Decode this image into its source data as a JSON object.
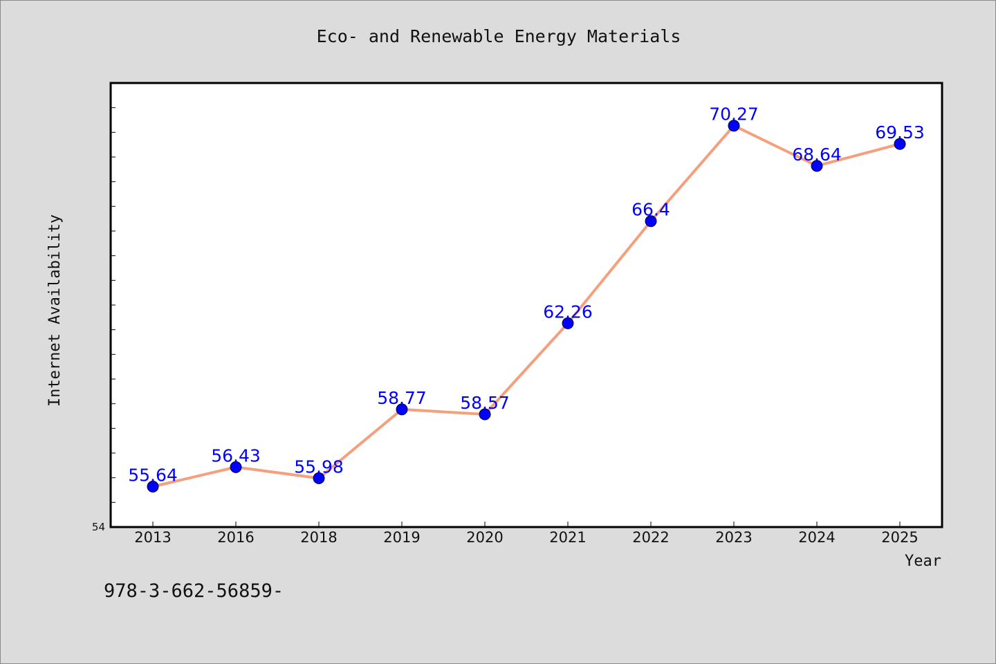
{
  "chart_data": {
    "type": "line",
    "title": "Eco- and Renewable Energy Materials",
    "xlabel": "Year",
    "ylabel": "Internet Availability",
    "ymin_label": "54",
    "categories": [
      "2013",
      "2016",
      "2018",
      "2019",
      "2020",
      "2021",
      "2022",
      "2023",
      "2024",
      "2025"
    ],
    "series": [
      {
        "values": [
          55.64,
          56.43,
          55.98,
          58.77,
          58.57,
          62.26,
          66.4,
          70.27,
          68.64,
          69.53
        ],
        "labels": [
          "55.64",
          "56.43",
          "55.98",
          "58.77",
          "58.57",
          "62.26",
          "66.4",
          "70.27",
          "68.64",
          "69.53"
        ]
      }
    ],
    "ylim": [
      54,
      72
    ],
    "grid": false,
    "legend": "none"
  },
  "footer": {
    "text": "978-3-662-56859-"
  },
  "colors": {
    "background": "#dcdcdc",
    "plot_background": "#ffffff",
    "line": "#f4a07e",
    "marker": "#0000ff",
    "data_label": "#0000ff"
  }
}
